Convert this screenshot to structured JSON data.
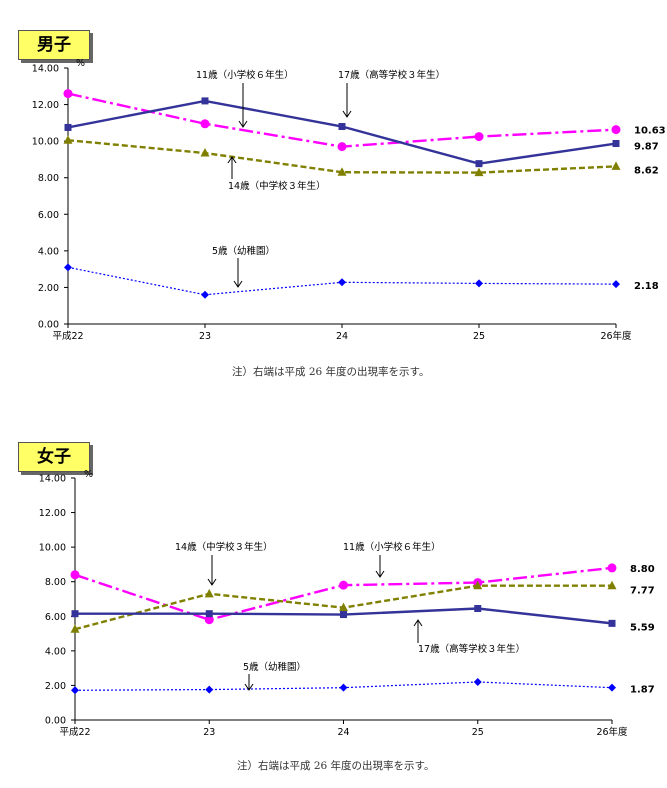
{
  "chart_data": [
    {
      "type": "line",
      "title": "男子",
      "unit": "%",
      "categories": [
        "平成22",
        "23",
        "24",
        "25",
        "26年度"
      ],
      "ylim": [
        0,
        14
      ],
      "yticks": [
        "0.00",
        "2.00",
        "4.00",
        "6.00",
        "8.00",
        "10.00",
        "12.00",
        "14.00"
      ],
      "series": [
        {
          "name": "5歳（幼稚園）",
          "color": "#0000ff",
          "dash": "2,2",
          "marker": "diamond",
          "values": [
            3.1,
            1.6,
            2.28,
            2.22,
            2.18
          ]
        },
        {
          "name": "11歳（小学校６年生）",
          "color": "#ff00ff",
          "dash": "14,4,3,4",
          "marker": "circle",
          "values": [
            12.6,
            10.95,
            9.7,
            10.25,
            10.63
          ]
        },
        {
          "name": "14歳（中学校３年生）",
          "color": "#808000",
          "dash": "6,3",
          "marker": "triangle",
          "values": [
            10.05,
            9.35,
            8.3,
            8.28,
            8.62
          ]
        },
        {
          "name": "17歳（高等学校３年生）",
          "color": "#333399",
          "dash": "",
          "marker": "square",
          "values": [
            10.75,
            12.2,
            10.8,
            8.77,
            9.87
          ]
        }
      ],
      "end_labels": [
        "2.18",
        "10.63",
        "8.62",
        "9.87"
      ],
      "note": "注）右端は平成 26 年度の出現率を示す。"
    },
    {
      "type": "line",
      "title": "女子",
      "unit": "%",
      "categories": [
        "平成22",
        "23",
        "24",
        "25",
        "26年度"
      ],
      "ylim": [
        0,
        14
      ],
      "yticks": [
        "0.00",
        "2.00",
        "4.00",
        "6.00",
        "8.00",
        "10.00",
        "12.00",
        "14.00"
      ],
      "series": [
        {
          "name": "5歳（幼稚園）",
          "color": "#0000ff",
          "dash": "2,2",
          "marker": "diamond",
          "values": [
            1.72,
            1.76,
            1.87,
            2.2,
            1.87
          ]
        },
        {
          "name": "11歳（小学校６年生）",
          "color": "#ff00ff",
          "dash": "14,4,3,4",
          "marker": "circle",
          "values": [
            8.4,
            5.8,
            7.8,
            7.95,
            8.8
          ]
        },
        {
          "name": "14歳（中学校３年生）",
          "color": "#808000",
          "dash": "6,3",
          "marker": "triangle",
          "values": [
            5.25,
            7.3,
            6.5,
            7.77,
            7.77
          ]
        },
        {
          "name": "17歳（高等学校３年生）",
          "color": "#333399",
          "dash": "",
          "marker": "square",
          "values": [
            6.15,
            6.15,
            6.1,
            6.45,
            5.59
          ]
        }
      ],
      "end_labels": [
        "1.87",
        "8.80",
        "7.77",
        "5.59"
      ],
      "note": "注）右端は平成 26 年度の出現率を示す。"
    }
  ]
}
